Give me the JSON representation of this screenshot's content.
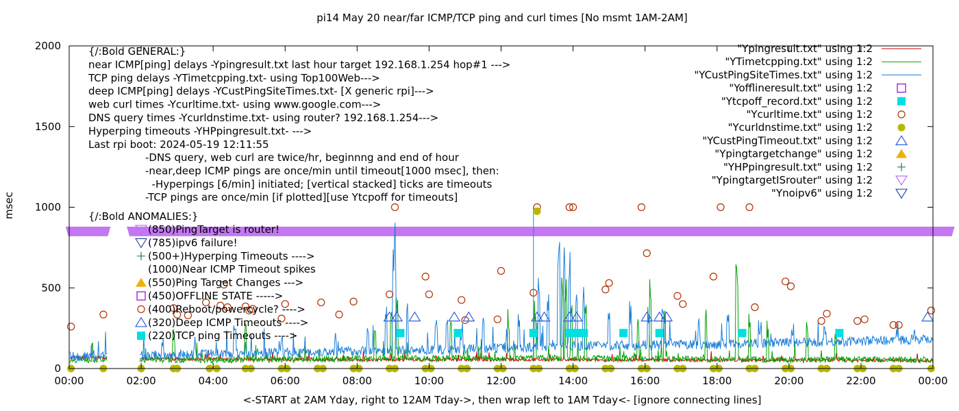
{
  "chart_data": {
    "type": "line",
    "title": "pi14 May 20  near/far ICMP/TCP ping and curl times [No msmt 1AM-2AM]",
    "xlabel": "<-START at 2AM Yday, right to 12AM Tday->, then wrap left to 1AM Tday<- [ignore connecting lines]",
    "ylabel": "msec",
    "xlim": [
      0,
      24
    ],
    "ylim": [
      0,
      2000
    ],
    "y_ticks": [
      {
        "v": 0,
        "label": "0"
      },
      {
        "v": 500,
        "label": "500"
      },
      {
        "v": 1000,
        "label": "1000"
      },
      {
        "v": 1500,
        "label": "1500"
      },
      {
        "v": 2000,
        "label": "2000"
      }
    ],
    "x_ticks": [
      {
        "v": 0,
        "label": "00:00"
      },
      {
        "v": 2,
        "label": "02:00"
      },
      {
        "v": 4,
        "label": "04:00"
      },
      {
        "v": 6,
        "label": "06:00"
      },
      {
        "v": 8,
        "label": "08:00"
      },
      {
        "v": 10,
        "label": "10:00"
      },
      {
        "v": 12,
        "label": "12:00"
      },
      {
        "v": 14,
        "label": "14:00"
      },
      {
        "v": 16,
        "label": "16:00"
      },
      {
        "v": 18,
        "label": "18:00"
      },
      {
        "v": 20,
        "label": "20:00"
      },
      {
        "v": 22,
        "label": "22:00"
      },
      {
        "v": 24,
        "label": "00:00"
      }
    ],
    "legend_position": "top-right",
    "legend": [
      {
        "label": "\"Ypingresult.txt\" using 1:2",
        "kind": "line",
        "color": "#d40000"
      },
      {
        "label": "\"YTimetcpping.txt\" using 1:2",
        "kind": "line",
        "color": "#00a000"
      },
      {
        "label": "\"YCustPingSiteTimes.txt\" using 1:2",
        "kind": "line",
        "color": "#1a7fd8"
      },
      {
        "label": "\"Yofflineresult.txt\" using 1:2",
        "kind": "square-open",
        "color": "#9400d3"
      },
      {
        "label": "\"Ytcpoff_record.txt\" using 1:2",
        "kind": "square-filled",
        "color": "#00e0e0"
      },
      {
        "label": "\"Ycurltime.txt\" using 1:2",
        "kind": "circle-open",
        "color": "#b03000"
      },
      {
        "label": "\"Ycurldnstime.txt\" using 1:2",
        "kind": "circle-filled",
        "color": "#b8b800"
      },
      {
        "label": "\"YCustPingTimeout.txt\" using 1:2",
        "kind": "triangle-open",
        "color": "#3060e0"
      },
      {
        "label": "\"Ypingtargetchange\" using 1:2",
        "kind": "triangle-filled",
        "color": "#f0b000"
      },
      {
        "label": "\"YHPpingresult.txt\" using 1:2",
        "kind": "plus",
        "color": "#208040"
      },
      {
        "label": "\"YpingtargetISrouter\" using 1:2",
        "kind": "triangle-down-open",
        "color": "#c070f0"
      },
      {
        "label": "\"Ynoipv6\" using 1:2",
        "kind": "triangle-down-open",
        "color": "#2050a0"
      }
    ],
    "annotations_top": [
      "{/:Bold GENERAL:}",
      "near ICMP[ping] delays -Ypingresult.txt last hour target 192.168.1.254 hop#1 --->",
      "TCP ping delays -YTimetcpping.txt- using Top100Web--->",
      "deep ICMP[ping] delays -YCustPingSiteTimes.txt- [X generic rpi]--->",
      "web curl times -Ycurltime.txt- using www.google.com--->",
      "DNS query times -Ycurldnstime.txt- using router? 192.168.1.254--->",
      "Hyperping timeouts -YHPpingresult.txt- --->",
      "Last rpi boot: 2024-05-19 12:11:55"
    ],
    "annotations_indented": [
      "-DNS query, web curl are twice/hr, beginnng and end of hour",
      "-near,deep ICMP pings are once/min until timeout[1000 msec], then:",
      "  -Hyperpings [6/min] initiated; [vertical stacked] ticks are timeouts",
      "-TCP pings are once/min [if plotted][use Ytcpoff for timeouts]"
    ],
    "anomalies_title": "{/:Bold ANOMALIES:}",
    "anomalies": [
      {
        "text": "(850)PingTarget is router!",
        "marker": "triangle-down-open",
        "color": "#c070f0"
      },
      {
        "text": "(785)ipv6 failure!",
        "marker": "triangle-down-open",
        "color": "#2050a0"
      },
      {
        "text": "(500+)Hyperping Timeouts ---->",
        "marker": "plus",
        "color": "#208040"
      },
      {
        "text": "(1000)Near ICMP Timeout spikes",
        "marker": "none",
        "color": "#d40000"
      },
      {
        "text": "(550)Ping Target Changes --->",
        "marker": "triangle-filled",
        "color": "#f0b000"
      },
      {
        "text": "(450)OFFLINE STATE ----->",
        "marker": "square-open",
        "color": "#9400d3"
      },
      {
        "text": "(400)Reboot/powercycle? ---->",
        "marker": "circle-open",
        "color": "#b03000"
      },
      {
        "text": "(320)Deep ICMP Timeouts ---->",
        "marker": "triangle-open",
        "color": "#3060e0"
      },
      {
        "text": "(220)TCP ping Timeouts ---->",
        "marker": "square-filled",
        "color": "#00e0e0"
      }
    ],
    "router_band": {
      "y": 850,
      "segments": [
        [
          -0.1,
          1.15
        ],
        [
          1.6,
          24.6
        ]
      ]
    },
    "curl_times": [
      [
        0.05,
        260
      ],
      [
        0.95,
        335
      ],
      [
        2.9,
        375
      ],
      [
        3.0,
        335
      ],
      [
        3.3,
        330
      ],
      [
        3.8,
        410
      ],
      [
        4.2,
        390
      ],
      [
        4.3,
        520
      ],
      [
        4.4,
        380
      ],
      [
        4.9,
        385
      ],
      [
        5.0,
        360
      ],
      [
        5.1,
        370
      ],
      [
        5.9,
        310
      ],
      [
        6.0,
        400
      ],
      [
        7.0,
        410
      ],
      [
        7.5,
        335
      ],
      [
        7.9,
        415
      ],
      [
        8.9,
        460
      ],
      [
        9.05,
        1000
      ],
      [
        9.9,
        570
      ],
      [
        10.0,
        460
      ],
      [
        10.9,
        425
      ],
      [
        11.0,
        300
      ],
      [
        11.9,
        305
      ],
      [
        12.0,
        605
      ],
      [
        12.9,
        470
      ],
      [
        13.0,
        1000
      ],
      [
        13.9,
        1000
      ],
      [
        14.0,
        1000
      ],
      [
        14.9,
        490
      ],
      [
        15.0,
        530
      ],
      [
        15.9,
        1000
      ],
      [
        16.05,
        715
      ],
      [
        16.9,
        450
      ],
      [
        17.05,
        400
      ],
      [
        17.9,
        570
      ],
      [
        18.1,
        1000
      ],
      [
        18.9,
        1000
      ],
      [
        19.05,
        380
      ],
      [
        19.9,
        540
      ],
      [
        20.05,
        510
      ],
      [
        20.9,
        295
      ],
      [
        21.05,
        340
      ],
      [
        21.9,
        295
      ],
      [
        22.1,
        305
      ],
      [
        22.9,
        270
      ],
      [
        23.05,
        270
      ],
      [
        23.95,
        360
      ]
    ],
    "curl_dns_times": [
      [
        0.05,
        0
      ],
      [
        0.95,
        0
      ],
      [
        2.0,
        0
      ],
      [
        2.9,
        0
      ],
      [
        3.0,
        0
      ],
      [
        3.9,
        0
      ],
      [
        4.1,
        0
      ],
      [
        4.9,
        0
      ],
      [
        5.05,
        0
      ],
      [
        5.9,
        0
      ],
      [
        6.05,
        0
      ],
      [
        6.9,
        0
      ],
      [
        7.05,
        0
      ],
      [
        7.9,
        0
      ],
      [
        8.05,
        0
      ],
      [
        8.9,
        0
      ],
      [
        9.05,
        0
      ],
      [
        9.9,
        0
      ],
      [
        10.05,
        0
      ],
      [
        10.9,
        0
      ],
      [
        11.05,
        0
      ],
      [
        11.9,
        0
      ],
      [
        12.05,
        0
      ],
      [
        12.9,
        0
      ],
      [
        13.0,
        975
      ],
      [
        13.05,
        0
      ],
      [
        13.9,
        0
      ],
      [
        14.05,
        0
      ],
      [
        14.9,
        0
      ],
      [
        15.05,
        0
      ],
      [
        15.9,
        0
      ],
      [
        16.05,
        0
      ],
      [
        16.9,
        0
      ],
      [
        17.05,
        0
      ],
      [
        17.9,
        0
      ],
      [
        18.05,
        0
      ],
      [
        18.9,
        0
      ],
      [
        19.05,
        0
      ],
      [
        19.9,
        0
      ],
      [
        20.05,
        0
      ],
      [
        20.9,
        0
      ],
      [
        21.05,
        0
      ],
      [
        21.9,
        0
      ],
      [
        22.05,
        0
      ],
      [
        22.9,
        0
      ],
      [
        23.05,
        0
      ],
      [
        23.95,
        0
      ]
    ],
    "deep_icmp_timeouts": [
      [
        8.9,
        320
      ],
      [
        9.1,
        320
      ],
      [
        9.6,
        320
      ],
      [
        10.7,
        320
      ],
      [
        11.1,
        320
      ],
      [
        13.0,
        320
      ],
      [
        13.2,
        320
      ],
      [
        13.9,
        320
      ],
      [
        14.1,
        320
      ],
      [
        16.05,
        320
      ],
      [
        16.4,
        320
      ],
      [
        16.6,
        320
      ],
      [
        23.85,
        320
      ]
    ],
    "tcp_ping_timeouts": [
      [
        9.2,
        220
      ],
      [
        10.8,
        220
      ],
      [
        12.9,
        220
      ],
      [
        13.9,
        220
      ],
      [
        14.1,
        220
      ],
      [
        14.3,
        220
      ],
      [
        15.4,
        220
      ],
      [
        16.4,
        220
      ],
      [
        18.7,
        220
      ],
      [
        21.4,
        220
      ]
    ],
    "deep_icmp_baseline": [
      [
        0,
        75
      ],
      [
        2,
        80
      ],
      [
        6,
        100
      ],
      [
        10,
        115
      ],
      [
        14,
        140
      ],
      [
        18,
        150
      ],
      [
        22,
        170
      ],
      [
        24,
        185
      ]
    ],
    "tcp_ping_baseline": [
      [
        0,
        55
      ],
      [
        4,
        55
      ],
      [
        8,
        60
      ],
      [
        12,
        65
      ],
      [
        16,
        60
      ],
      [
        20,
        55
      ],
      [
        24,
        55
      ]
    ],
    "near_icmp_baseline": [
      [
        0,
        70
      ],
      [
        2,
        60
      ],
      [
        4,
        58
      ],
      [
        8,
        55
      ],
      [
        12,
        55
      ],
      [
        16,
        52
      ],
      [
        20,
        52
      ],
      [
        24,
        50
      ]
    ],
    "deep_icmp_spikes": [
      [
        2.6,
        220
      ],
      [
        3.5,
        200
      ],
      [
        4.6,
        320
      ],
      [
        5.9,
        240
      ],
      [
        7.4,
        260
      ],
      [
        8.3,
        300
      ],
      [
        8.8,
        430
      ],
      [
        9.0,
        780
      ],
      [
        9.05,
        920
      ],
      [
        9.4,
        420
      ],
      [
        10.2,
        360
      ],
      [
        10.5,
        330
      ],
      [
        10.9,
        280
      ],
      [
        11.5,
        410
      ],
      [
        12.5,
        380
      ],
      [
        13.05,
        640
      ],
      [
        13.3,
        560
      ],
      [
        13.6,
        980
      ],
      [
        13.75,
        780
      ],
      [
        13.9,
        860
      ],
      [
        14.1,
        620
      ],
      [
        14.3,
        520
      ],
      [
        15.0,
        500
      ],
      [
        15.6,
        430
      ],
      [
        16.1,
        400
      ],
      [
        16.5,
        380
      ],
      [
        17.5,
        320
      ],
      [
        18.3,
        410
      ],
      [
        19.2,
        340
      ],
      [
        20.1,
        320
      ],
      [
        21.0,
        300
      ],
      [
        22.4,
        280
      ],
      [
        23.0,
        300
      ],
      [
        23.5,
        260
      ]
    ],
    "tcp_ping_spikes": [
      [
        2.9,
        300
      ],
      [
        4.9,
        280
      ],
      [
        8.5,
        270
      ],
      [
        8.95,
        360
      ],
      [
        9.1,
        520
      ],
      [
        10.6,
        340
      ],
      [
        12.2,
        390
      ],
      [
        12.95,
        470
      ],
      [
        13.7,
        710
      ],
      [
        13.8,
        560
      ],
      [
        13.95,
        410
      ],
      [
        14.35,
        480
      ],
      [
        15.8,
        360
      ],
      [
        16.15,
        560
      ],
      [
        16.55,
        460
      ],
      [
        17.7,
        390
      ],
      [
        18.55,
        650
      ],
      [
        18.9,
        370
      ],
      [
        19.4,
        310
      ],
      [
        20.5,
        300
      ],
      [
        21.3,
        260
      ]
    ],
    "deep_icmp_outlier": [
      12.9,
      1000
    ]
  }
}
